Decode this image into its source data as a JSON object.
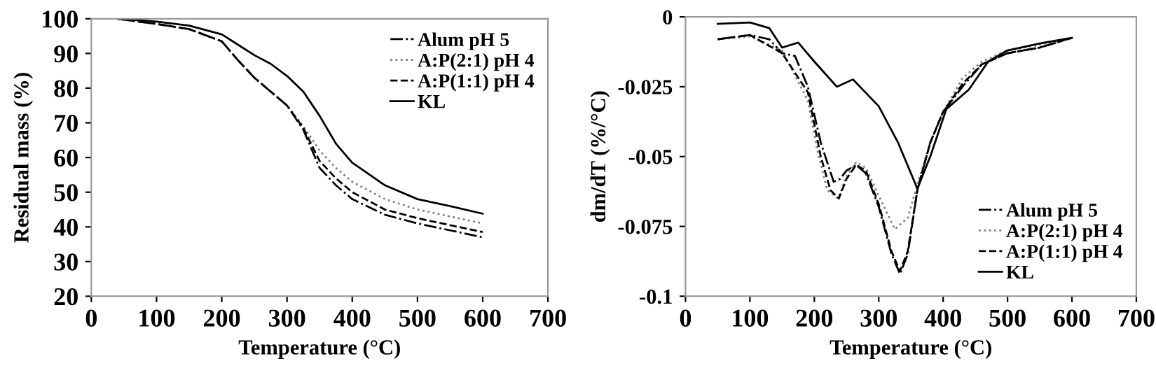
{
  "chart_data": [
    {
      "type": "line",
      "xlabel": "Temperature (°C)",
      "ylabel": "Residual mass (%)",
      "xlim": [
        0,
        700
      ],
      "ylim": [
        20,
        100
      ],
      "xticks": [
        0,
        100,
        200,
        300,
        400,
        500,
        600,
        700
      ],
      "yticks": [
        20,
        30,
        40,
        50,
        60,
        70,
        80,
        90,
        100
      ],
      "legend": "top right",
      "grid": false,
      "series": [
        {
          "name": "Alum pH 5",
          "color": "#000000",
          "line_style": "dashdot",
          "x": [
            40,
            100,
            150,
            200,
            225,
            250,
            275,
            300,
            325,
            350,
            375,
            400,
            450,
            500,
            550,
            600
          ],
          "values": [
            100,
            98.5,
            97,
            93.5,
            88,
            83,
            79,
            75,
            68,
            57,
            52,
            48,
            43.5,
            41,
            39,
            37
          ]
        },
        {
          "name": "A:P(2:1) pH 4",
          "color": "#808080",
          "line_style": "dotted",
          "x": [
            40,
            100,
            150,
            200,
            225,
            250,
            275,
            300,
            325,
            350,
            375,
            400,
            450,
            500,
            550,
            600
          ],
          "values": [
            100,
            98.5,
            97,
            93.5,
            88,
            83,
            79,
            75,
            69,
            62,
            57,
            53,
            48,
            45,
            43,
            41
          ]
        },
        {
          "name": "A:P(1:1) pH 4",
          "color": "#000000",
          "line_style": "dashed",
          "x": [
            40,
            100,
            150,
            200,
            225,
            250,
            275,
            300,
            325,
            350,
            375,
            400,
            450,
            500,
            550,
            600
          ],
          "values": [
            100,
            98.5,
            97,
            93.5,
            88,
            83,
            79,
            75,
            68.5,
            59,
            54,
            50,
            45,
            42.5,
            40.5,
            38.5
          ]
        },
        {
          "name": "KL",
          "color": "#000000",
          "line_style": "solid",
          "x": [
            40,
            100,
            150,
            200,
            225,
            250,
            275,
            300,
            325,
            350,
            375,
            400,
            450,
            500,
            550,
            600
          ],
          "values": [
            100,
            99.2,
            98,
            95.5,
            92.5,
            89.5,
            87,
            83.5,
            79,
            72,
            64,
            58.5,
            52,
            48,
            46,
            43.8
          ]
        }
      ]
    },
    {
      "type": "line",
      "xlabel": "Temperature (°C)",
      "ylabel": "dm/dT (%/°C)",
      "xlim": [
        0,
        700
      ],
      "ylim": [
        -0.1,
        0
      ],
      "xticks": [
        0,
        100,
        200,
        300,
        400,
        500,
        600,
        700
      ],
      "yticks": [
        {
          "value": -0.1,
          "label": "-0.1"
        },
        {
          "value": -0.075,
          "label": "-0.075"
        },
        {
          "value": -0.05,
          "label": "-0.05"
        },
        {
          "value": -0.025,
          "label": "-0.025"
        },
        0
      ],
      "legend": "bottom right",
      "grid": false,
      "series": [
        {
          "name": "Alum pH 5",
          "color": "#000000",
          "line_style": "dashdot",
          "x": [
            50,
            100,
            130,
            150,
            170,
            190,
            210,
            230,
            240,
            250,
            265,
            280,
            300,
            320,
            333,
            345,
            360,
            380,
            400,
            430,
            460,
            500,
            550,
            600
          ],
          "values": [
            -0.008,
            -0.0065,
            -0.008,
            -0.013,
            -0.014,
            -0.025,
            -0.045,
            -0.059,
            -0.058,
            -0.055,
            -0.053,
            -0.056,
            -0.068,
            -0.085,
            -0.092,
            -0.085,
            -0.062,
            -0.045,
            -0.034,
            -0.025,
            -0.017,
            -0.013,
            -0.011,
            -0.0075
          ]
        },
        {
          "name": "A:P(2:1) pH 4",
          "color": "#808080",
          "line_style": "dotted",
          "x": [
            50,
            100,
            150,
            190,
            205,
            220,
            237,
            250,
            265,
            280,
            300,
            325,
            345,
            360,
            380,
            400,
            430,
            460,
            500,
            550,
            600
          ],
          "values": [
            -0.008,
            -0.007,
            -0.012,
            -0.03,
            -0.048,
            -0.062,
            -0.065,
            -0.057,
            -0.052,
            -0.054,
            -0.064,
            -0.076,
            -0.072,
            -0.06,
            -0.045,
            -0.034,
            -0.022,
            -0.016,
            -0.012,
            -0.01,
            -0.0075
          ]
        },
        {
          "name": "A:P(1:1) pH 4",
          "color": "#000000",
          "line_style": "dashed",
          "x": [
            50,
            100,
            150,
            190,
            210,
            225,
            238,
            250,
            265,
            280,
            300,
            320,
            333,
            345,
            360,
            380,
            400,
            430,
            460,
            500,
            550,
            600
          ],
          "values": [
            -0.008,
            -0.0065,
            -0.013,
            -0.027,
            -0.05,
            -0.062,
            -0.065,
            -0.058,
            -0.053,
            -0.055,
            -0.067,
            -0.084,
            -0.091,
            -0.084,
            -0.062,
            -0.045,
            -0.034,
            -0.024,
            -0.017,
            -0.013,
            -0.011,
            -0.0075
          ]
        },
        {
          "name": "KL",
          "color": "#000000",
          "line_style": "solid",
          "x": [
            50,
            100,
            130,
            150,
            175,
            200,
            235,
            260,
            300,
            330,
            360,
            380,
            405,
            440,
            470,
            500,
            550,
            600
          ],
          "values": [
            -0.0025,
            -0.002,
            -0.004,
            -0.011,
            -0.0092,
            -0.016,
            -0.025,
            -0.0224,
            -0.032,
            -0.045,
            -0.0615,
            -0.05,
            -0.033,
            -0.026,
            -0.016,
            -0.012,
            -0.0095,
            -0.0075
          ]
        }
      ]
    }
  ]
}
